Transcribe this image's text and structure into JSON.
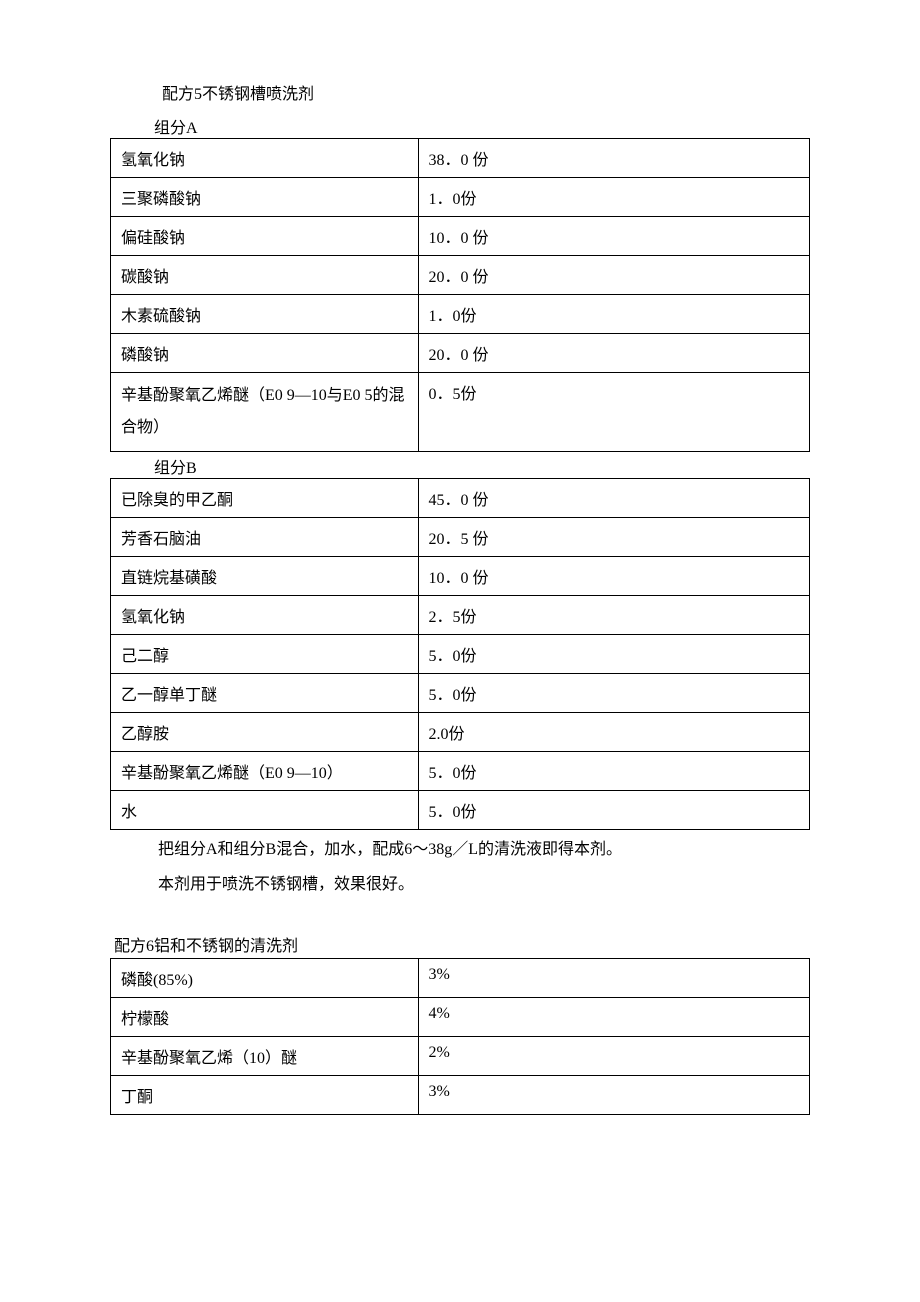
{
  "formula5": {
    "title": "配方5不锈钢槽喷洗剂",
    "groupA": {
      "label": "组分A",
      "rows": [
        {
          "name": "氢氧化钠",
          "value": "38．0 份"
        },
        {
          "name": "三聚磷酸钠",
          "value": "1．0份"
        },
        {
          "name": "偏硅酸钠",
          "value": "10．0 份"
        },
        {
          "name": "碳酸钠",
          "value": "20．0 份"
        },
        {
          "name": "木素硫酸钠",
          "value": "1．0份"
        },
        {
          "name": "磷酸钠",
          "value": "20．0 份"
        },
        {
          "name": "辛基酚聚氧乙烯醚（E0 9—10与E0 5的混合物）",
          "value": "0．5份"
        }
      ]
    },
    "groupB": {
      "label": "组分B",
      "rows": [
        {
          "name": "已除臭的甲乙酮",
          "value": "45．0 份"
        },
        {
          "name": "芳香石脑油",
          "value": "20．5 份"
        },
        {
          "name": "直链烷基磺酸",
          "value": "10．0 份"
        },
        {
          "name": "氢氧化钠",
          "value": "2．5份"
        },
        {
          "name": "己二醇",
          "value": "5．0份"
        },
        {
          "name": "乙一醇单丁醚",
          "value": "5．0份"
        },
        {
          "name": "乙醇胺",
          "value": "2.0份"
        },
        {
          "name": "辛基酚聚氧乙烯醚（E0 9—10）",
          "value": "5．0份"
        },
        {
          "name": "水",
          "value": "5．0份"
        }
      ]
    },
    "paragraph1": "把组分A和组分B混合，加水，配成6～38g／L的清洗液即得本剂。",
    "paragraph2": "本剂用于喷洗不锈钢槽，效果很好。"
  },
  "formula6": {
    "title": "配方6铝和不锈钢的清洗剂",
    "rows": [
      {
        "name": "磷酸(85%)",
        "value": "3%"
      },
      {
        "name": "柠檬酸",
        "value": "4%"
      },
      {
        "name": "辛基酚聚氧乙烯（10）醚",
        "value": "2%"
      },
      {
        "name": "丁酮",
        "value": "3%"
      }
    ]
  }
}
